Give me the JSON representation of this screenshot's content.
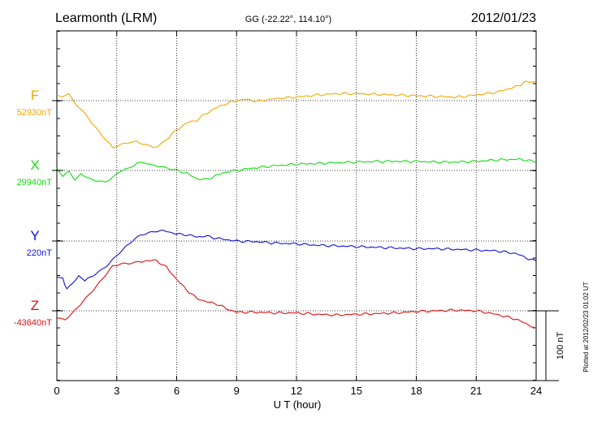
{
  "header": {
    "station": "Learmonth (LRM)",
    "coordinates": "GG (-22.22°, 114.10°)",
    "date": "2012/01/23"
  },
  "footer_note": "Plotted at 2012/02/23 01:02 UT",
  "scale_bar": {
    "label": "100 nT",
    "value_nT": 100
  },
  "chart_data": {
    "type": "line",
    "xlabel": "U T (hour)",
    "xlim": [
      0,
      24
    ],
    "xticks": [
      0,
      3,
      6,
      9,
      12,
      15,
      18,
      21,
      24
    ],
    "grid": true,
    "units": "nT",
    "series": [
      {
        "name": "F",
        "baseline_label": "52930nT",
        "baseline_value": 52930,
        "color": "#f0a800",
        "x": [
          0,
          0.3,
          0.6,
          0.9,
          1.2,
          1.6,
          2.0,
          2.4,
          2.8,
          3.2,
          3.6,
          4.0,
          4.4,
          4.8,
          5.1,
          5.5,
          6.0,
          6.5,
          7.0,
          7.5,
          8.0,
          8.5,
          9.0,
          9.5,
          10.0,
          11.0,
          12.0,
          13.0,
          14.0,
          15.0,
          16.0,
          17.0,
          18.0,
          19.0,
          20.0,
          21.0,
          22.0,
          23.0,
          23.6,
          24.0
        ],
        "values": [
          52938,
          52935,
          52939,
          52928,
          52918,
          52905,
          52890,
          52876,
          52862,
          52866,
          52870,
          52872,
          52868,
          52864,
          52866,
          52875,
          52888,
          52898,
          52902,
          52912,
          52920,
          52926,
          52930,
          52932,
          52929,
          52933,
          52935,
          52938,
          52940,
          52940,
          52939,
          52938,
          52937,
          52936,
          52935,
          52938,
          52942,
          52950,
          52958,
          52957
        ]
      },
      {
        "name": "X",
        "baseline_label": "29940nT",
        "baseline_value": 29940,
        "color": "#11dd11",
        "x": [
          0,
          0.3,
          0.6,
          0.9,
          1.2,
          1.6,
          2.0,
          2.4,
          2.8,
          3.2,
          3.6,
          4.0,
          4.4,
          4.8,
          5.2,
          5.6,
          6.0,
          6.5,
          7.0,
          7.5,
          8.0,
          8.5,
          9.0,
          10.0,
          11.0,
          12.0,
          13.0,
          14.0,
          15.0,
          16.0,
          17.0,
          18.0,
          19.0,
          20.0,
          21.0,
          22.0,
          23.0,
          23.5,
          24.0
        ],
        "values": [
          29945,
          29932,
          29938,
          29926,
          29935,
          29928,
          29926,
          29924,
          29930,
          29939,
          29942,
          29950,
          29952,
          29948,
          29946,
          29942,
          29940,
          29936,
          29928,
          29927,
          29933,
          29938,
          29940,
          29944,
          29947,
          29949,
          29950,
          29951,
          29952,
          29953,
          29953,
          29953,
          29952,
          29952,
          29953,
          29955,
          29956,
          29955,
          29952
        ]
      },
      {
        "name": "Y",
        "baseline_label": "220nT",
        "baseline_value": 220,
        "color": "#1111dd",
        "x": [
          0,
          0.3,
          0.5,
          0.8,
          1.1,
          1.4,
          1.8,
          2.2,
          2.6,
          3.0,
          3.4,
          3.8,
          4.2,
          4.6,
          5.0,
          5.5,
          6.0,
          6.5,
          7.0,
          7.5,
          8.0,
          8.5,
          9.0,
          10.0,
          11.0,
          12.0,
          13.0,
          14.0,
          15.0,
          16.0,
          17.0,
          18.0,
          19.0,
          20.0,
          21.0,
          22.0,
          23.0,
          23.5,
          24.0
        ],
        "values": [
          168,
          166,
          150,
          160,
          172,
          162,
          170,
          178,
          188,
          200,
          210,
          220,
          228,
          232,
          235,
          234,
          230,
          229,
          226,
          227,
          224,
          222,
          220,
          219,
          217,
          216,
          214,
          213,
          212,
          211,
          210,
          209,
          209,
          208,
          207,
          206,
          202,
          196,
          191
        ]
      },
      {
        "name": "Z",
        "baseline_label": "-43640nT",
        "baseline_value": -43640,
        "color": "#dd1111",
        "x": [
          0,
          0.4,
          0.8,
          1.2,
          1.6,
          2.0,
          2.4,
          2.8,
          3.2,
          3.6,
          4.0,
          4.5,
          5.0,
          5.5,
          6.0,
          6.5,
          7.0,
          7.5,
          8.0,
          8.5,
          9.0,
          10.0,
          11.0,
          12.0,
          13.0,
          14.0,
          15.0,
          16.0,
          17.0,
          18.0,
          19.0,
          20.0,
          21.0,
          22.0,
          23.0,
          24.0
        ],
        "values": [
          -43650,
          -43652,
          -43642,
          -43630,
          -43618,
          -43605,
          -43590,
          -43575,
          -43572,
          -43572,
          -43571,
          -43568,
          -43568,
          -43578,
          -43595,
          -43610,
          -43622,
          -43627,
          -43630,
          -43637,
          -43642,
          -43642,
          -43643,
          -43643,
          -43645,
          -43646,
          -43645,
          -43644,
          -43643,
          -43641,
          -43640,
          -43639,
          -43640,
          -43645,
          -43652,
          -43665
        ]
      }
    ]
  }
}
